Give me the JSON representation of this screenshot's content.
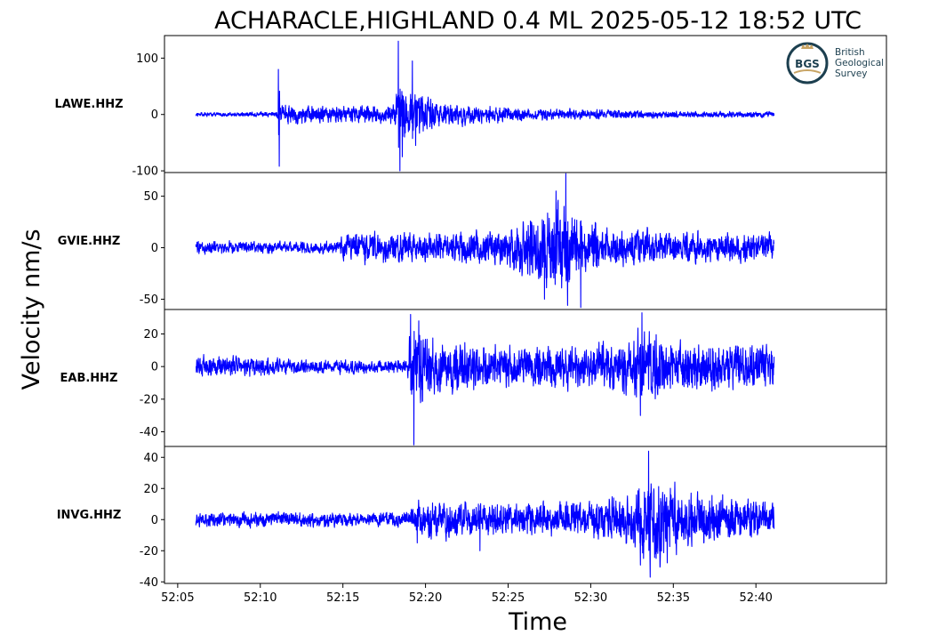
{
  "chart_data": {
    "type": "line",
    "title": "ACHARACLE,HIGHLAND 0.4 ML   2025-05-12 18:52 UTC",
    "xlabel": "Time",
    "ylabel": "Velocity nm/s",
    "xlim_seconds": [
      4.2,
      47.9
    ],
    "x_ticks": [
      {
        "s": 5,
        "label": "52:05"
      },
      {
        "s": 10,
        "label": "52:10"
      },
      {
        "s": 15,
        "label": "52:15"
      },
      {
        "s": 20,
        "label": "52:20"
      },
      {
        "s": 25,
        "label": "52:25"
      },
      {
        "s": 30,
        "label": "52:30"
      },
      {
        "s": 35,
        "label": "52:35"
      },
      {
        "s": 40,
        "label": "52:40"
      }
    ],
    "color": "#0000ff",
    "t_start_s": 6.1,
    "t_end_s": 41.1,
    "series": [
      {
        "name": "LAWE.HHZ",
        "ylim": [
          -103,
          140
        ],
        "yticks": [
          {
            "v": 100,
            "label": "100"
          },
          {
            "v": 0,
            "label": "0"
          },
          {
            "v": -100,
            "label": "-100"
          }
        ],
        "noise": 3,
        "envelope": [
          [
            6.1,
            3
          ],
          [
            8,
            3
          ],
          [
            10.9,
            4
          ],
          [
            11.2,
            18
          ],
          [
            12.5,
            14
          ],
          [
            15,
            12
          ],
          [
            18,
            14
          ],
          [
            18.4,
            40
          ],
          [
            19.8,
            30
          ],
          [
            21,
            18
          ],
          [
            23,
            14
          ],
          [
            26,
            10
          ],
          [
            30,
            7
          ],
          [
            35,
            5
          ],
          [
            41.1,
            4
          ]
        ],
        "spikes": [
          [
            11.1,
            80
          ],
          [
            11.15,
            -92
          ],
          [
            18.35,
            130
          ],
          [
            18.45,
            -100
          ],
          [
            18.6,
            -75
          ],
          [
            19.2,
            95
          ],
          [
            19.4,
            -55
          ]
        ]
      },
      {
        "name": "GVIE.HHZ",
        "ylim": [
          -60,
          73
        ],
        "yticks": [
          {
            "v": 50,
            "label": "50"
          },
          {
            "v": 0,
            "label": "0"
          },
          {
            "v": -50,
            "label": "-50"
          }
        ],
        "noise": 4,
        "envelope": [
          [
            6.1,
            5
          ],
          [
            14.8,
            5
          ],
          [
            15,
            12
          ],
          [
            20,
            12
          ],
          [
            24,
            14
          ],
          [
            26,
            22
          ],
          [
            27,
            32
          ],
          [
            28.3,
            38
          ],
          [
            29.5,
            28
          ],
          [
            31,
            16
          ],
          [
            35,
            13
          ],
          [
            41.1,
            11
          ]
        ],
        "spikes": [
          [
            28.5,
            72
          ],
          [
            28.6,
            -56
          ],
          [
            29.4,
            -58
          ],
          [
            27.9,
            55
          ],
          [
            27.2,
            -50
          ]
        ]
      },
      {
        "name": "EAB.HHZ",
        "ylim": [
          -49,
          35
        ],
        "yticks": [
          {
            "v": 20,
            "label": "20"
          },
          {
            "v": 0,
            "label": "0"
          },
          {
            "v": -20,
            "label": "-20"
          },
          {
            "v": -40,
            "label": "-40"
          }
        ],
        "noise": 2,
        "envelope": [
          [
            6.1,
            6
          ],
          [
            9,
            5
          ],
          [
            12,
            4
          ],
          [
            18.9,
            3
          ],
          [
            19.1,
            22
          ],
          [
            20,
            20
          ],
          [
            21,
            13
          ],
          [
            25,
            11
          ],
          [
            30,
            11
          ],
          [
            32.5,
            14
          ],
          [
            33.5,
            22
          ],
          [
            34.5,
            14
          ],
          [
            41.1,
            11
          ]
        ],
        "spikes": [
          [
            19.1,
            32
          ],
          [
            19.3,
            -48
          ],
          [
            19.6,
            28
          ],
          [
            33.1,
            33
          ],
          [
            33.0,
            -30
          ]
        ]
      },
      {
        "name": "INVG.HHZ",
        "ylim": [
          -41,
          47
        ],
        "yticks": [
          {
            "v": 40,
            "label": "40"
          },
          {
            "v": 20,
            "label": "20"
          },
          {
            "v": 0,
            "label": "0"
          },
          {
            "v": -20,
            "label": "-20"
          },
          {
            "v": -40,
            "label": "-40"
          }
        ],
        "noise": 2,
        "envelope": [
          [
            6.1,
            4
          ],
          [
            19,
            4
          ],
          [
            19.5,
            10
          ],
          [
            25,
            10
          ],
          [
            30,
            10
          ],
          [
            32.5,
            14
          ],
          [
            33,
            24
          ],
          [
            34,
            28
          ],
          [
            35,
            18
          ],
          [
            37,
            14
          ],
          [
            41.1,
            9
          ]
        ],
        "spikes": [
          [
            33.5,
            44
          ],
          [
            33.6,
            -37
          ],
          [
            23.3,
            -20
          ],
          [
            19.5,
            -15
          ]
        ]
      }
    ]
  },
  "logo": {
    "mark": "BGS",
    "line1": "British",
    "line2": "Geological",
    "line3": "Survey",
    "crown_color": "#c8a464",
    "ring_color": "#1c3f4f"
  }
}
